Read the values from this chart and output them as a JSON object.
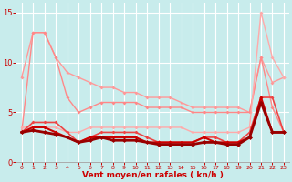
{
  "background_color": "#c8ecec",
  "grid_color": "#ffffff",
  "xlabel": "Vent moyen/en rafales ( kn/h )",
  "xlabel_color": "#cc0000",
  "tick_color": "#cc0000",
  "xlim": [
    -0.5,
    23.5
  ],
  "ylim": [
    0,
    16
  ],
  "yticks": [
    0,
    5,
    10,
    15
  ],
  "xticks": [
    0,
    1,
    2,
    3,
    4,
    5,
    6,
    7,
    8,
    9,
    10,
    11,
    12,
    13,
    14,
    15,
    16,
    17,
    18,
    19,
    20,
    21,
    22,
    23
  ],
  "series": [
    {
      "x": [
        0,
        1,
        2,
        3,
        4,
        5,
        6,
        7,
        8,
        9,
        10,
        11,
        12,
        13,
        14,
        15,
        16,
        17,
        18,
        19,
        20,
        21,
        22,
        23
      ],
      "y": [
        8.5,
        13.0,
        13.0,
        10.5,
        9.0,
        8.5,
        8.0,
        7.5,
        7.5,
        7.0,
        7.0,
        6.5,
        6.5,
        6.5,
        6.0,
        5.5,
        5.5,
        5.5,
        5.5,
        5.5,
        5.0,
        10.5,
        8.0,
        8.5
      ],
      "color": "#ff9999",
      "linewidth": 1.0,
      "marker": "D",
      "markersize": 2.0,
      "linestyle": "-"
    },
    {
      "x": [
        0,
        1,
        2,
        3,
        4,
        5,
        6,
        7,
        8,
        9,
        10,
        11,
        12,
        13,
        14,
        15,
        16,
        17,
        18,
        19,
        20,
        21,
        22,
        23
      ],
      "y": [
        3.0,
        13.0,
        13.0,
        10.5,
        6.5,
        5.0,
        5.5,
        6.0,
        6.0,
        6.0,
        6.0,
        5.5,
        5.5,
        5.5,
        5.5,
        5.0,
        5.0,
        5.0,
        5.0,
        5.0,
        5.0,
        10.5,
        5.5,
        3.0
      ],
      "color": "#ff8888",
      "linewidth": 1.0,
      "marker": "D",
      "markersize": 2.0,
      "linestyle": "-"
    },
    {
      "x": [
        0,
        1,
        2,
        3,
        4,
        5,
        6,
        7,
        8,
        9,
        10,
        11,
        12,
        13,
        14,
        15,
        16,
        17,
        18,
        19,
        20,
        21,
        22,
        23
      ],
      "y": [
        3.5,
        3.5,
        3.5,
        3.5,
        3.0,
        3.0,
        3.5,
        3.5,
        3.5,
        3.5,
        3.5,
        3.5,
        3.5,
        3.5,
        3.5,
        3.0,
        3.0,
        3.0,
        3.0,
        3.0,
        3.5,
        15.0,
        10.5,
        8.5
      ],
      "color": "#ffaaaa",
      "linewidth": 1.0,
      "marker": "D",
      "markersize": 2.0,
      "linestyle": "-"
    },
    {
      "x": [
        0,
        1,
        2,
        3,
        4,
        5,
        6,
        7,
        8,
        9,
        10,
        11,
        12,
        13,
        14,
        15,
        16,
        17,
        18,
        19,
        20,
        21,
        22,
        23
      ],
      "y": [
        3.0,
        4.0,
        4.0,
        4.0,
        3.0,
        2.0,
        2.5,
        3.0,
        3.0,
        3.0,
        3.0,
        2.5,
        2.0,
        2.0,
        2.0,
        2.0,
        2.5,
        2.5,
        2.0,
        2.0,
        3.0,
        6.5,
        6.5,
        3.0
      ],
      "color": "#ee4444",
      "linewidth": 1.2,
      "marker": "D",
      "markersize": 2.0,
      "linestyle": "-"
    },
    {
      "x": [
        0,
        1,
        2,
        3,
        4,
        5,
        6,
        7,
        8,
        9,
        10,
        11,
        12,
        13,
        14,
        15,
        16,
        17,
        18,
        19,
        20,
        21,
        22,
        23
      ],
      "y": [
        3.0,
        3.5,
        3.5,
        3.0,
        2.5,
        2.0,
        2.5,
        2.5,
        2.5,
        2.5,
        2.5,
        2.0,
        2.0,
        2.0,
        2.0,
        2.0,
        2.5,
        2.0,
        2.0,
        2.0,
        2.5,
        6.5,
        3.0,
        3.0
      ],
      "color": "#cc0000",
      "linewidth": 1.5,
      "marker": "D",
      "markersize": 2.0,
      "linestyle": "-"
    },
    {
      "x": [
        0,
        1,
        2,
        3,
        4,
        5,
        6,
        7,
        8,
        9,
        10,
        11,
        12,
        13,
        14,
        15,
        16,
        17,
        18,
        19,
        20,
        21,
        22,
        23
      ],
      "y": [
        3.0,
        3.2,
        3.0,
        2.8,
        2.5,
        2.0,
        2.2,
        2.5,
        2.2,
        2.2,
        2.2,
        2.0,
        1.8,
        1.8,
        1.8,
        1.8,
        2.0,
        2.0,
        1.8,
        1.8,
        2.5,
        6.0,
        3.0,
        3.0
      ],
      "color": "#990000",
      "linewidth": 2.0,
      "marker": "D",
      "markersize": 2.5,
      "linestyle": "-"
    }
  ]
}
